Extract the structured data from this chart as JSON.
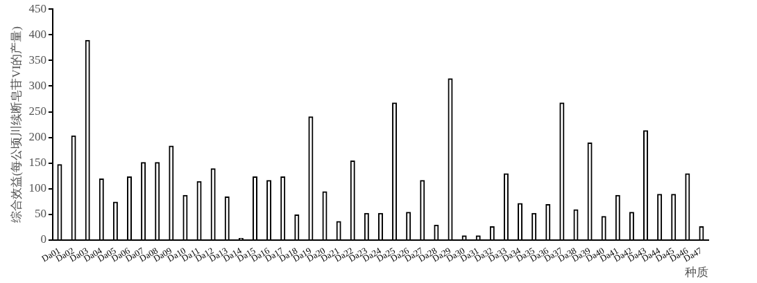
{
  "chart_data": {
    "type": "bar",
    "xlabel": "种质",
    "ylabel": "综合效益(每公顷川续断皂苷VI的产量)",
    "categories": [
      "Da01",
      "Da02",
      "Da03",
      "Da04",
      "Da05",
      "Da06",
      "Da07",
      "Da08",
      "Da09",
      "Da10",
      "Da11",
      "Da12",
      "Da13",
      "Da14",
      "Da15",
      "Da16",
      "Da17",
      "Da18",
      "Da19",
      "Da20",
      "Da21",
      "Da22",
      "Da23",
      "Da24",
      "Da25",
      "Da26",
      "Da27",
      "Da28",
      "Da29",
      "Da30",
      "Da31",
      "Da32",
      "Da33",
      "Da34",
      "Da35",
      "Da36",
      "Da37",
      "Da38",
      "Da39",
      "Da40",
      "Da41",
      "Da42",
      "Da43",
      "Da44",
      "Da45",
      "Da46",
      "Da47"
    ],
    "values": [
      148,
      204,
      390,
      120,
      75,
      124,
      152,
      152,
      184,
      88,
      115,
      140,
      85,
      4,
      124,
      117,
      124,
      50,
      241,
      95,
      37,
      155,
      53,
      53,
      268,
      55,
      117,
      30,
      315,
      9,
      9,
      27,
      130,
      72,
      53,
      70,
      268,
      60,
      190,
      47,
      88,
      55,
      214,
      90,
      90,
      130,
      27
    ],
    "color": "#000000",
    "ylim": [
      0,
      450
    ],
    "yticks": [
      0,
      50,
      100,
      150,
      200,
      250,
      300,
      350,
      400,
      450
    ],
    "grid": false,
    "legend": false
  }
}
